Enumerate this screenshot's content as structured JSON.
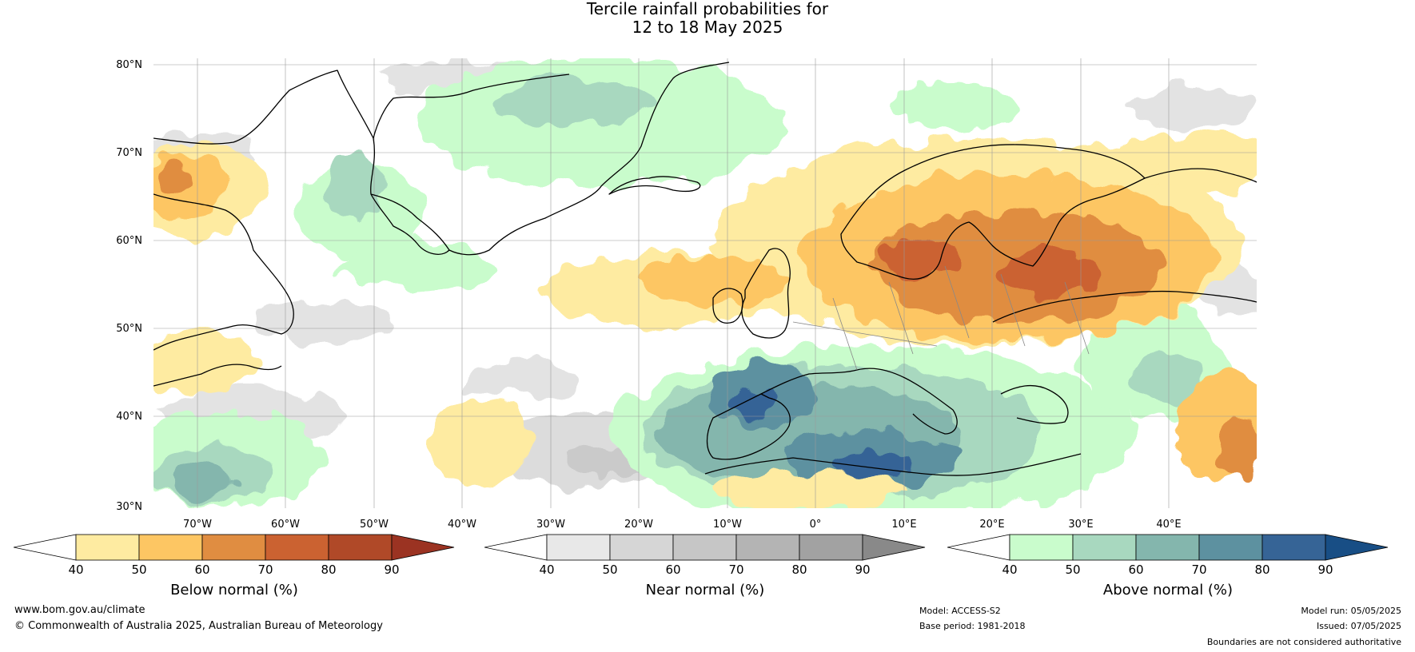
{
  "title": {
    "line1": "Tercile rainfall probabilities for",
    "line2": "12 to 18 May 2025"
  },
  "map": {
    "lat_labels": [
      "80°N",
      "70°N",
      "60°N",
      "50°N",
      "40°N",
      "30°N"
    ],
    "lon_labels": [
      "70°W",
      "60°W",
      "50°W",
      "40°W",
      "30°W",
      "20°W",
      "10°W",
      "0°",
      "10°E",
      "20°E",
      "30°E",
      "40°E"
    ],
    "lat_range": [
      30,
      80
    ],
    "lon_range": [
      -77,
      49.7
    ]
  },
  "legends": [
    {
      "label": "Below normal (%)",
      "ticks": [
        "40",
        "50",
        "60",
        "70",
        "80",
        "90"
      ],
      "colors": [
        "#ffffff",
        "#feeba1",
        "#fdc663",
        "#e08d41",
        "#cb6231",
        "#b04928",
        "#9b3322"
      ]
    },
    {
      "label": "Near normal (%)",
      "ticks": [
        "40",
        "50",
        "60",
        "70",
        "80",
        "90"
      ],
      "colors": [
        "#ffffff",
        "#e8e8e8",
        "#d6d6d6",
        "#c6c6c6",
        "#b4b4b4",
        "#a2a2a2",
        "#898989"
      ]
    },
    {
      "label": "Above normal (%)",
      "ticks": [
        "40",
        "50",
        "60",
        "70",
        "80",
        "90"
      ],
      "colors": [
        "#ffffff",
        "#c9fccc",
        "#a8d8bf",
        "#84b6ad",
        "#5d91a0",
        "#366496",
        "#184e85"
      ]
    }
  ],
  "footer": {
    "website": "www.bom.gov.au/climate",
    "copyright": "© Commonwealth of Australia 2025, Australian Bureau of Meteorology",
    "model": "Model: ACCESS-S2",
    "base_period": "Base period: 1981-2018",
    "model_run": "Model run: 05/05/2025",
    "issued": "Issued: 07/05/2025",
    "disclaimer": "Boundaries are not considered authoritative"
  }
}
